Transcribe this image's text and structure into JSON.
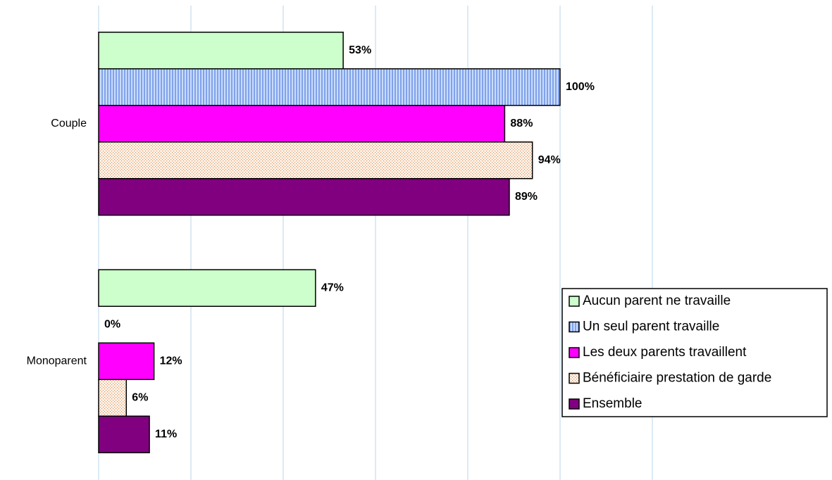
{
  "chart_data": {
    "type": "hbar",
    "categories": [
      "Couple",
      "Monoparent"
    ],
    "series": [
      {
        "name": "Aucun parent ne travaille",
        "color": "#ccffcc",
        "values": [
          53,
          47
        ],
        "value_labels": [
          "53%",
          "47%"
        ]
      },
      {
        "name": "Un seul parent travaille",
        "color": "#99b3ee",
        "pattern": "vertical-lines",
        "values": [
          100,
          0
        ],
        "value_labels": [
          "100%",
          "0%"
        ]
      },
      {
        "name": "Les deux parents travaillent",
        "color": "#ff00ff",
        "values": [
          88,
          12
        ],
        "value_labels": [
          "88%",
          "12%"
        ]
      },
      {
        "name": "Bénéficiaire prestation de garde",
        "color": "#f0b890",
        "pattern": "dots",
        "values": [
          94,
          6
        ],
        "value_labels": [
          "94%",
          "6%"
        ]
      },
      {
        "name": "Ensemble",
        "color": "#800080",
        "values": [
          89,
          11
        ],
        "value_labels": [
          "89%",
          "11%"
        ]
      }
    ],
    "xlim": [
      0,
      120
    ],
    "xticks": [
      0,
      20,
      40,
      60,
      80,
      100,
      120
    ],
    "grid": true,
    "legend": "right"
  }
}
